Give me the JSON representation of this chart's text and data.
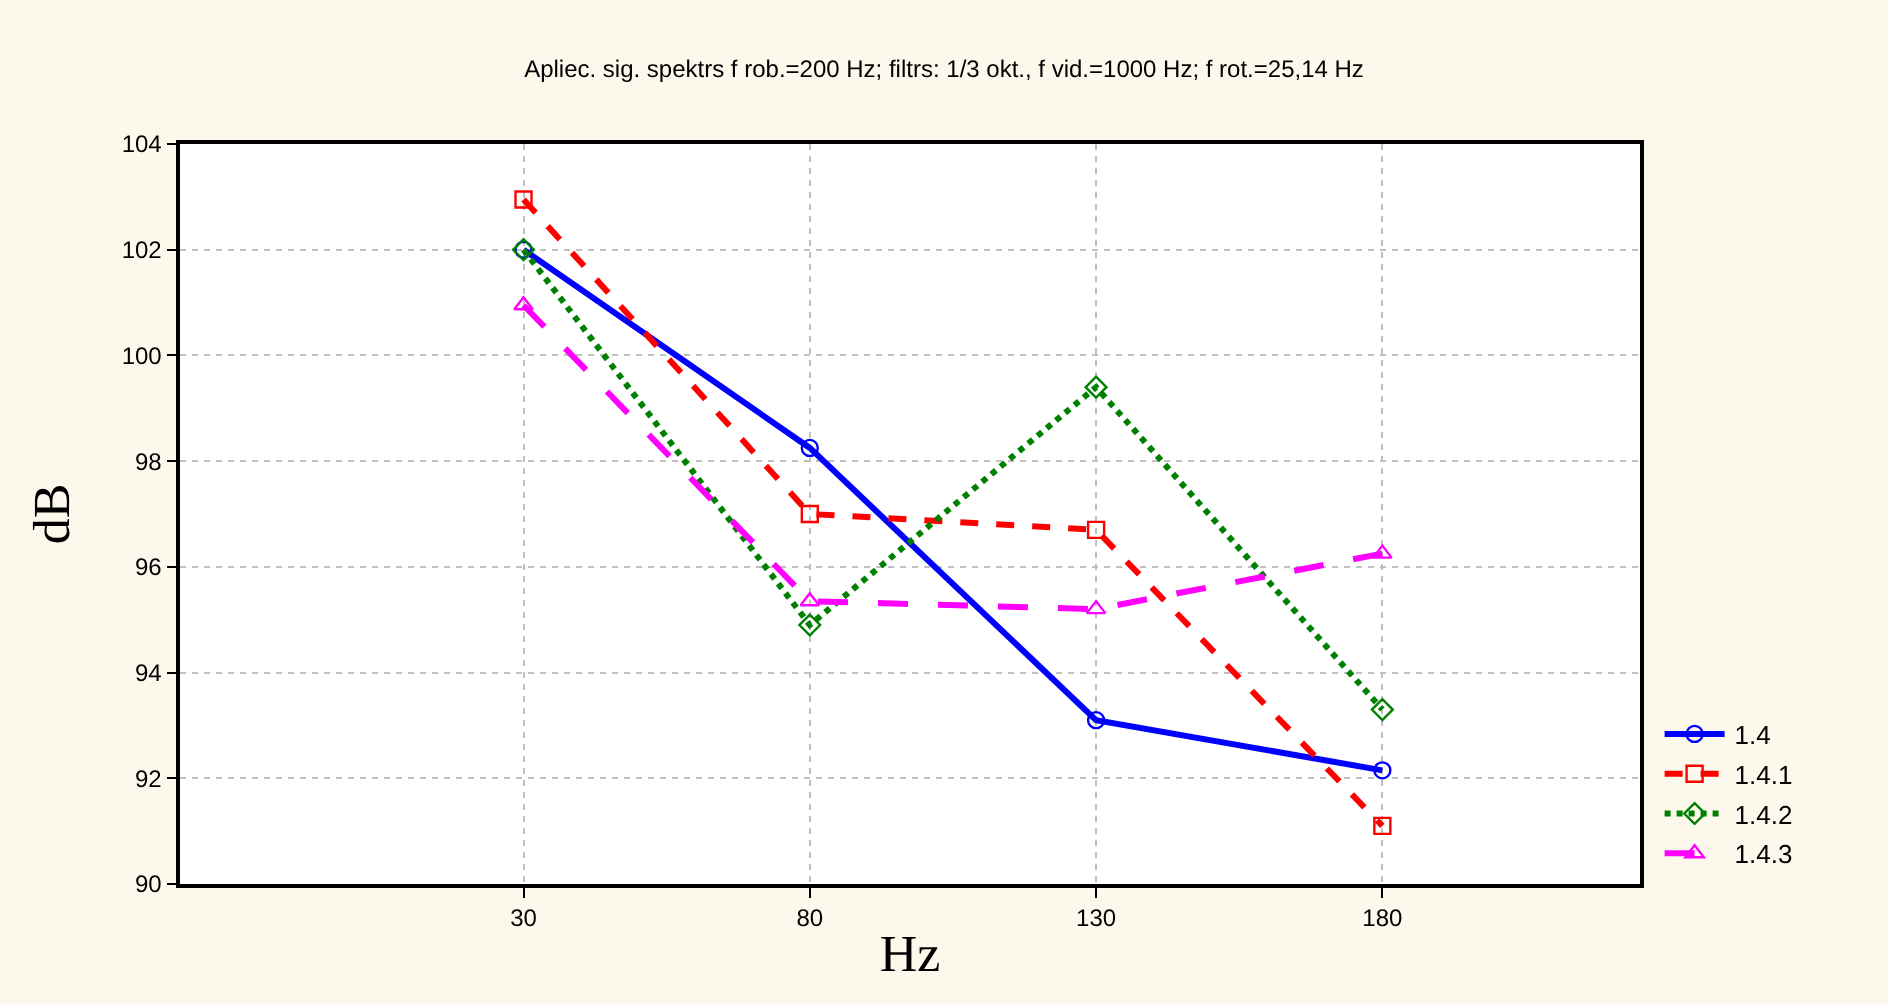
{
  "chart_data": {
    "type": "line",
    "title": "Apliec. sig. spektrs f rob.=200 Hz; filtrs: 1/3 okt., f vid.=1000 Hz; f rot.=25,14 Hz",
    "xlabel": "Hz",
    "ylabel": "dB",
    "x": [
      30,
      80,
      130,
      180
    ],
    "xlim": [
      -30,
      225
    ],
    "xticks": [
      30,
      80,
      130,
      180
    ],
    "ylim": [
      90,
      104
    ],
    "yticks": [
      90,
      92,
      94,
      96,
      98,
      100,
      102,
      104
    ],
    "grid": true,
    "legend": "bottom right",
    "series": [
      {
        "name": "1.4",
        "color": "#0000ff",
        "marker": "circle",
        "line_style": "solid",
        "values": [
          102,
          98.25,
          93.1,
          92.15
        ]
      },
      {
        "name": "1.4.1",
        "color": "#ff0000",
        "marker": "square",
        "line_style": "dashed",
        "values": [
          102.95,
          97,
          96.7,
          91.1
        ]
      },
      {
        "name": "1.4.2",
        "color": "#008000",
        "marker": "diamond",
        "line_style": "dotted",
        "values": [
          102,
          94.9,
          99.4,
          93.3
        ]
      },
      {
        "name": "1.4.3",
        "color": "#ff00ff",
        "marker": "triangle",
        "line_style": "longdash",
        "values": [
          100.95,
          95.35,
          95.2,
          96.25
        ]
      }
    ]
  }
}
